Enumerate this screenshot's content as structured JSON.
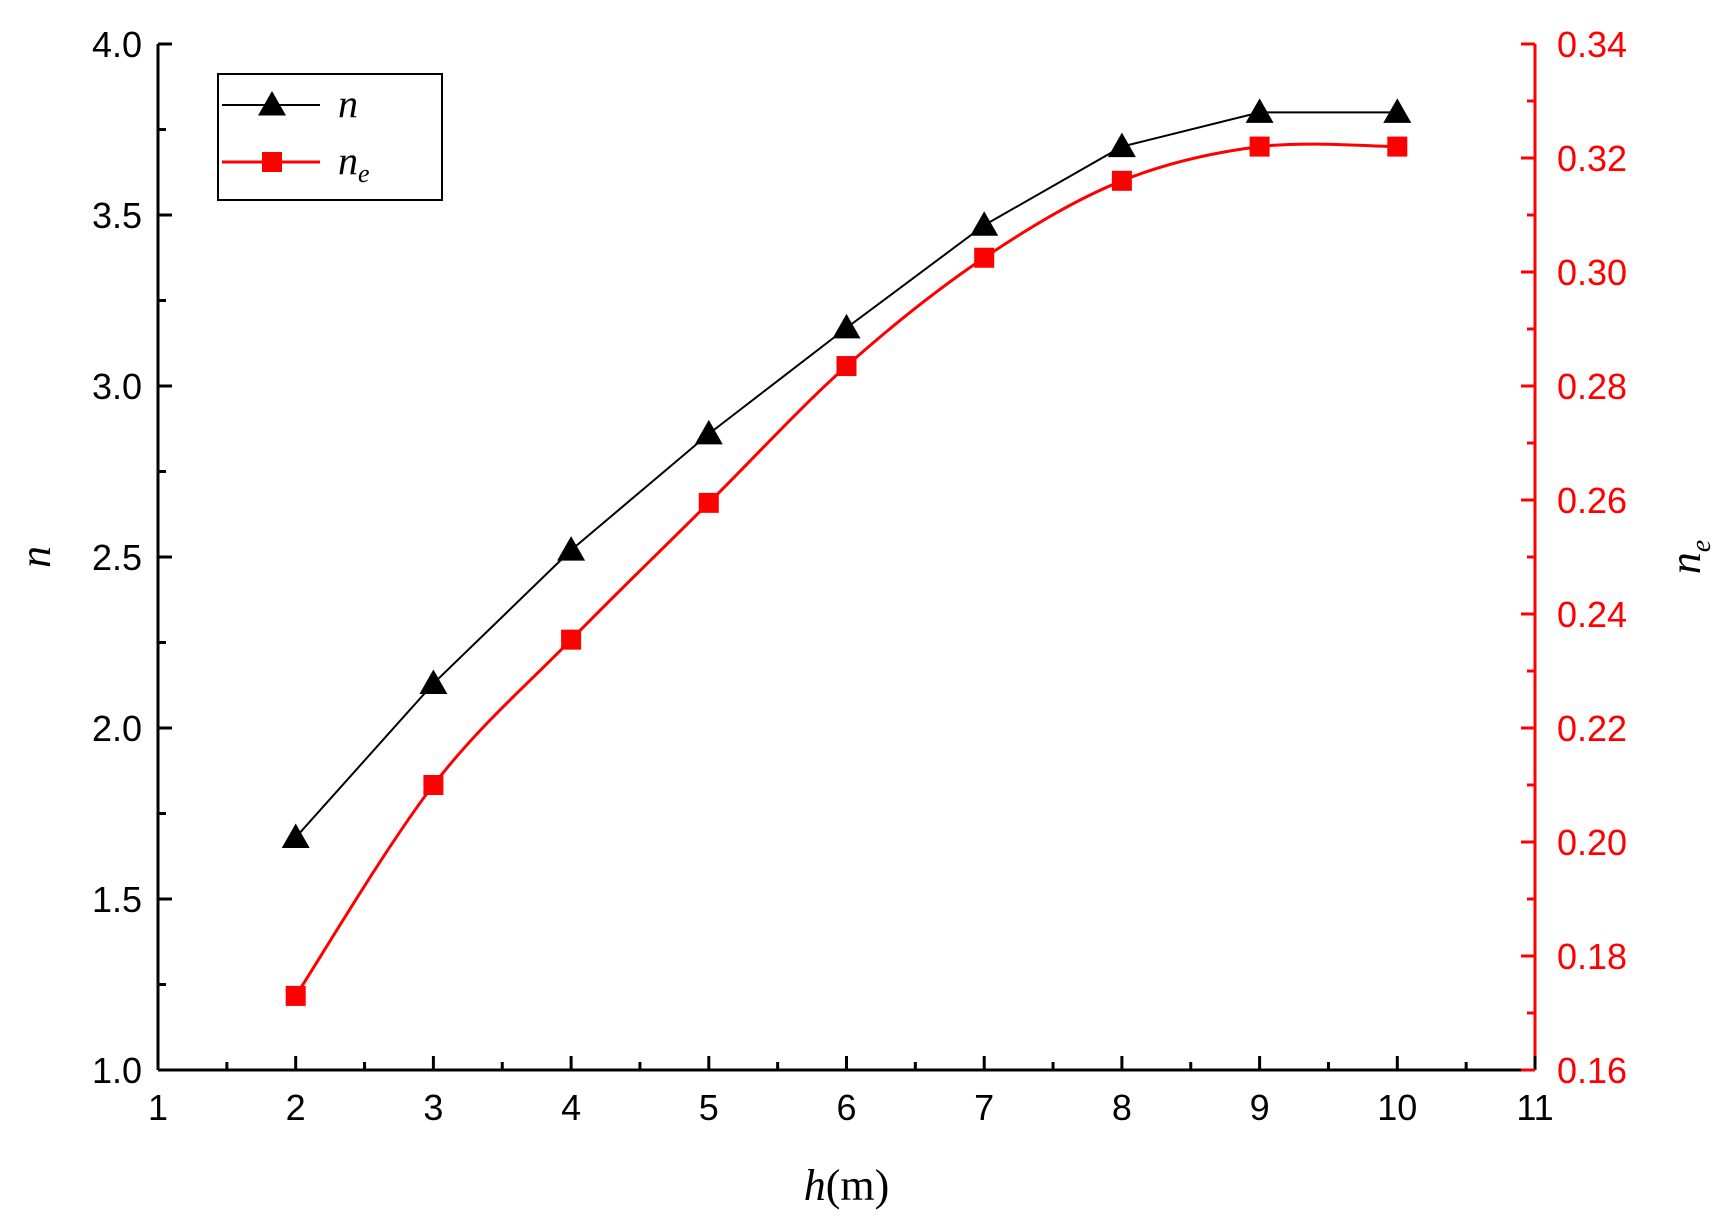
{
  "chart_data": {
    "type": "line",
    "title": "",
    "xlabel": {
      "var": "h",
      "unit": "(m)"
    },
    "ylabel_left": {
      "var": "n"
    },
    "ylabel_right": {
      "var": "n",
      "sub": "e"
    },
    "xlim": [
      1,
      11
    ],
    "xticks": [
      1,
      2,
      3,
      4,
      5,
      6,
      7,
      8,
      9,
      10,
      11
    ],
    "ylim_left": [
      1.0,
      4.0
    ],
    "yticks_left": [
      "1.0",
      "1.5",
      "2.0",
      "2.5",
      "3.0",
      "3.5",
      "4.0"
    ],
    "ylim_right": [
      0.16,
      0.34
    ],
    "yticks_right": [
      "0.16",
      "0.18",
      "0.20",
      "0.22",
      "0.24",
      "0.26",
      "0.28",
      "0.30",
      "0.32",
      "0.34"
    ],
    "grid": false,
    "legend": "top-left",
    "x": [
      2,
      3,
      4,
      5,
      6,
      7,
      8,
      9,
      10
    ],
    "series": [
      {
        "name": "n",
        "axis": "left",
        "marker": "triangle",
        "color": "#000000",
        "smooth": false,
        "values": [
          1.68,
          2.13,
          2.52,
          2.86,
          3.17,
          3.47,
          3.7,
          3.8,
          3.8
        ]
      },
      {
        "name": "n",
        "sub": "e",
        "axis": "right",
        "marker": "square",
        "color": "#ff0000",
        "smooth": true,
        "values": [
          0.173,
          0.21,
          0.2355,
          0.2595,
          0.2835,
          0.3025,
          0.316,
          0.322,
          0.322
        ]
      }
    ]
  }
}
